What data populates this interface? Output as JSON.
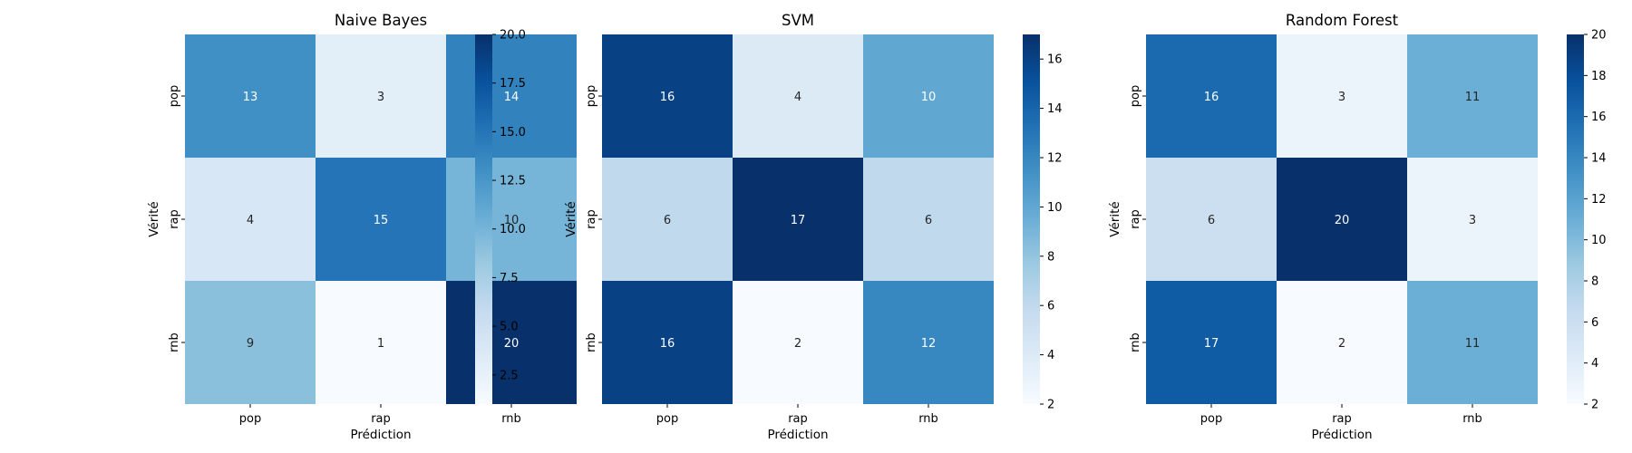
{
  "chart_data": [
    {
      "type": "heatmap",
      "title": "Naive Bayes",
      "xlabel": "Prédiction",
      "ylabel": "Vérité",
      "x_categories": [
        "pop",
        "rap",
        "rnb"
      ],
      "y_categories": [
        "pop",
        "rap",
        "rnb"
      ],
      "values": [
        [
          13,
          3,
          14
        ],
        [
          4,
          15,
          10
        ],
        [
          9,
          1,
          20
        ]
      ],
      "colorbar": {
        "range": [
          1,
          20
        ],
        "ticks": [
          "2.5",
          "5.0",
          "7.5",
          "10.0",
          "12.5",
          "15.0",
          "17.5",
          "20.0"
        ],
        "colormap": "Blues"
      }
    },
    {
      "type": "heatmap",
      "title": "SVM",
      "xlabel": "Prédiction",
      "ylabel": "Vérité",
      "x_categories": [
        "pop",
        "rap",
        "rnb"
      ],
      "y_categories": [
        "pop",
        "rap",
        "rnb"
      ],
      "values": [
        [
          16,
          4,
          10
        ],
        [
          6,
          17,
          6
        ],
        [
          16,
          2,
          12
        ]
      ],
      "colorbar": {
        "range": [
          2,
          17
        ],
        "ticks": [
          "2",
          "4",
          "6",
          "8",
          "10",
          "12",
          "14",
          "16"
        ],
        "colormap": "Blues"
      }
    },
    {
      "type": "heatmap",
      "title": "Random Forest",
      "xlabel": "Prédiction",
      "ylabel": "Vérité",
      "x_categories": [
        "pop",
        "rap",
        "rnb"
      ],
      "y_categories": [
        "pop",
        "rap",
        "rnb"
      ],
      "values": [
        [
          16,
          3,
          11
        ],
        [
          6,
          20,
          3
        ],
        [
          17,
          2,
          11
        ]
      ],
      "colorbar": {
        "range": [
          2,
          20
        ],
        "ticks": [
          "2",
          "4",
          "6",
          "8",
          "10",
          "12",
          "14",
          "16",
          "18",
          "20"
        ],
        "colormap": "Blues"
      }
    }
  ]
}
